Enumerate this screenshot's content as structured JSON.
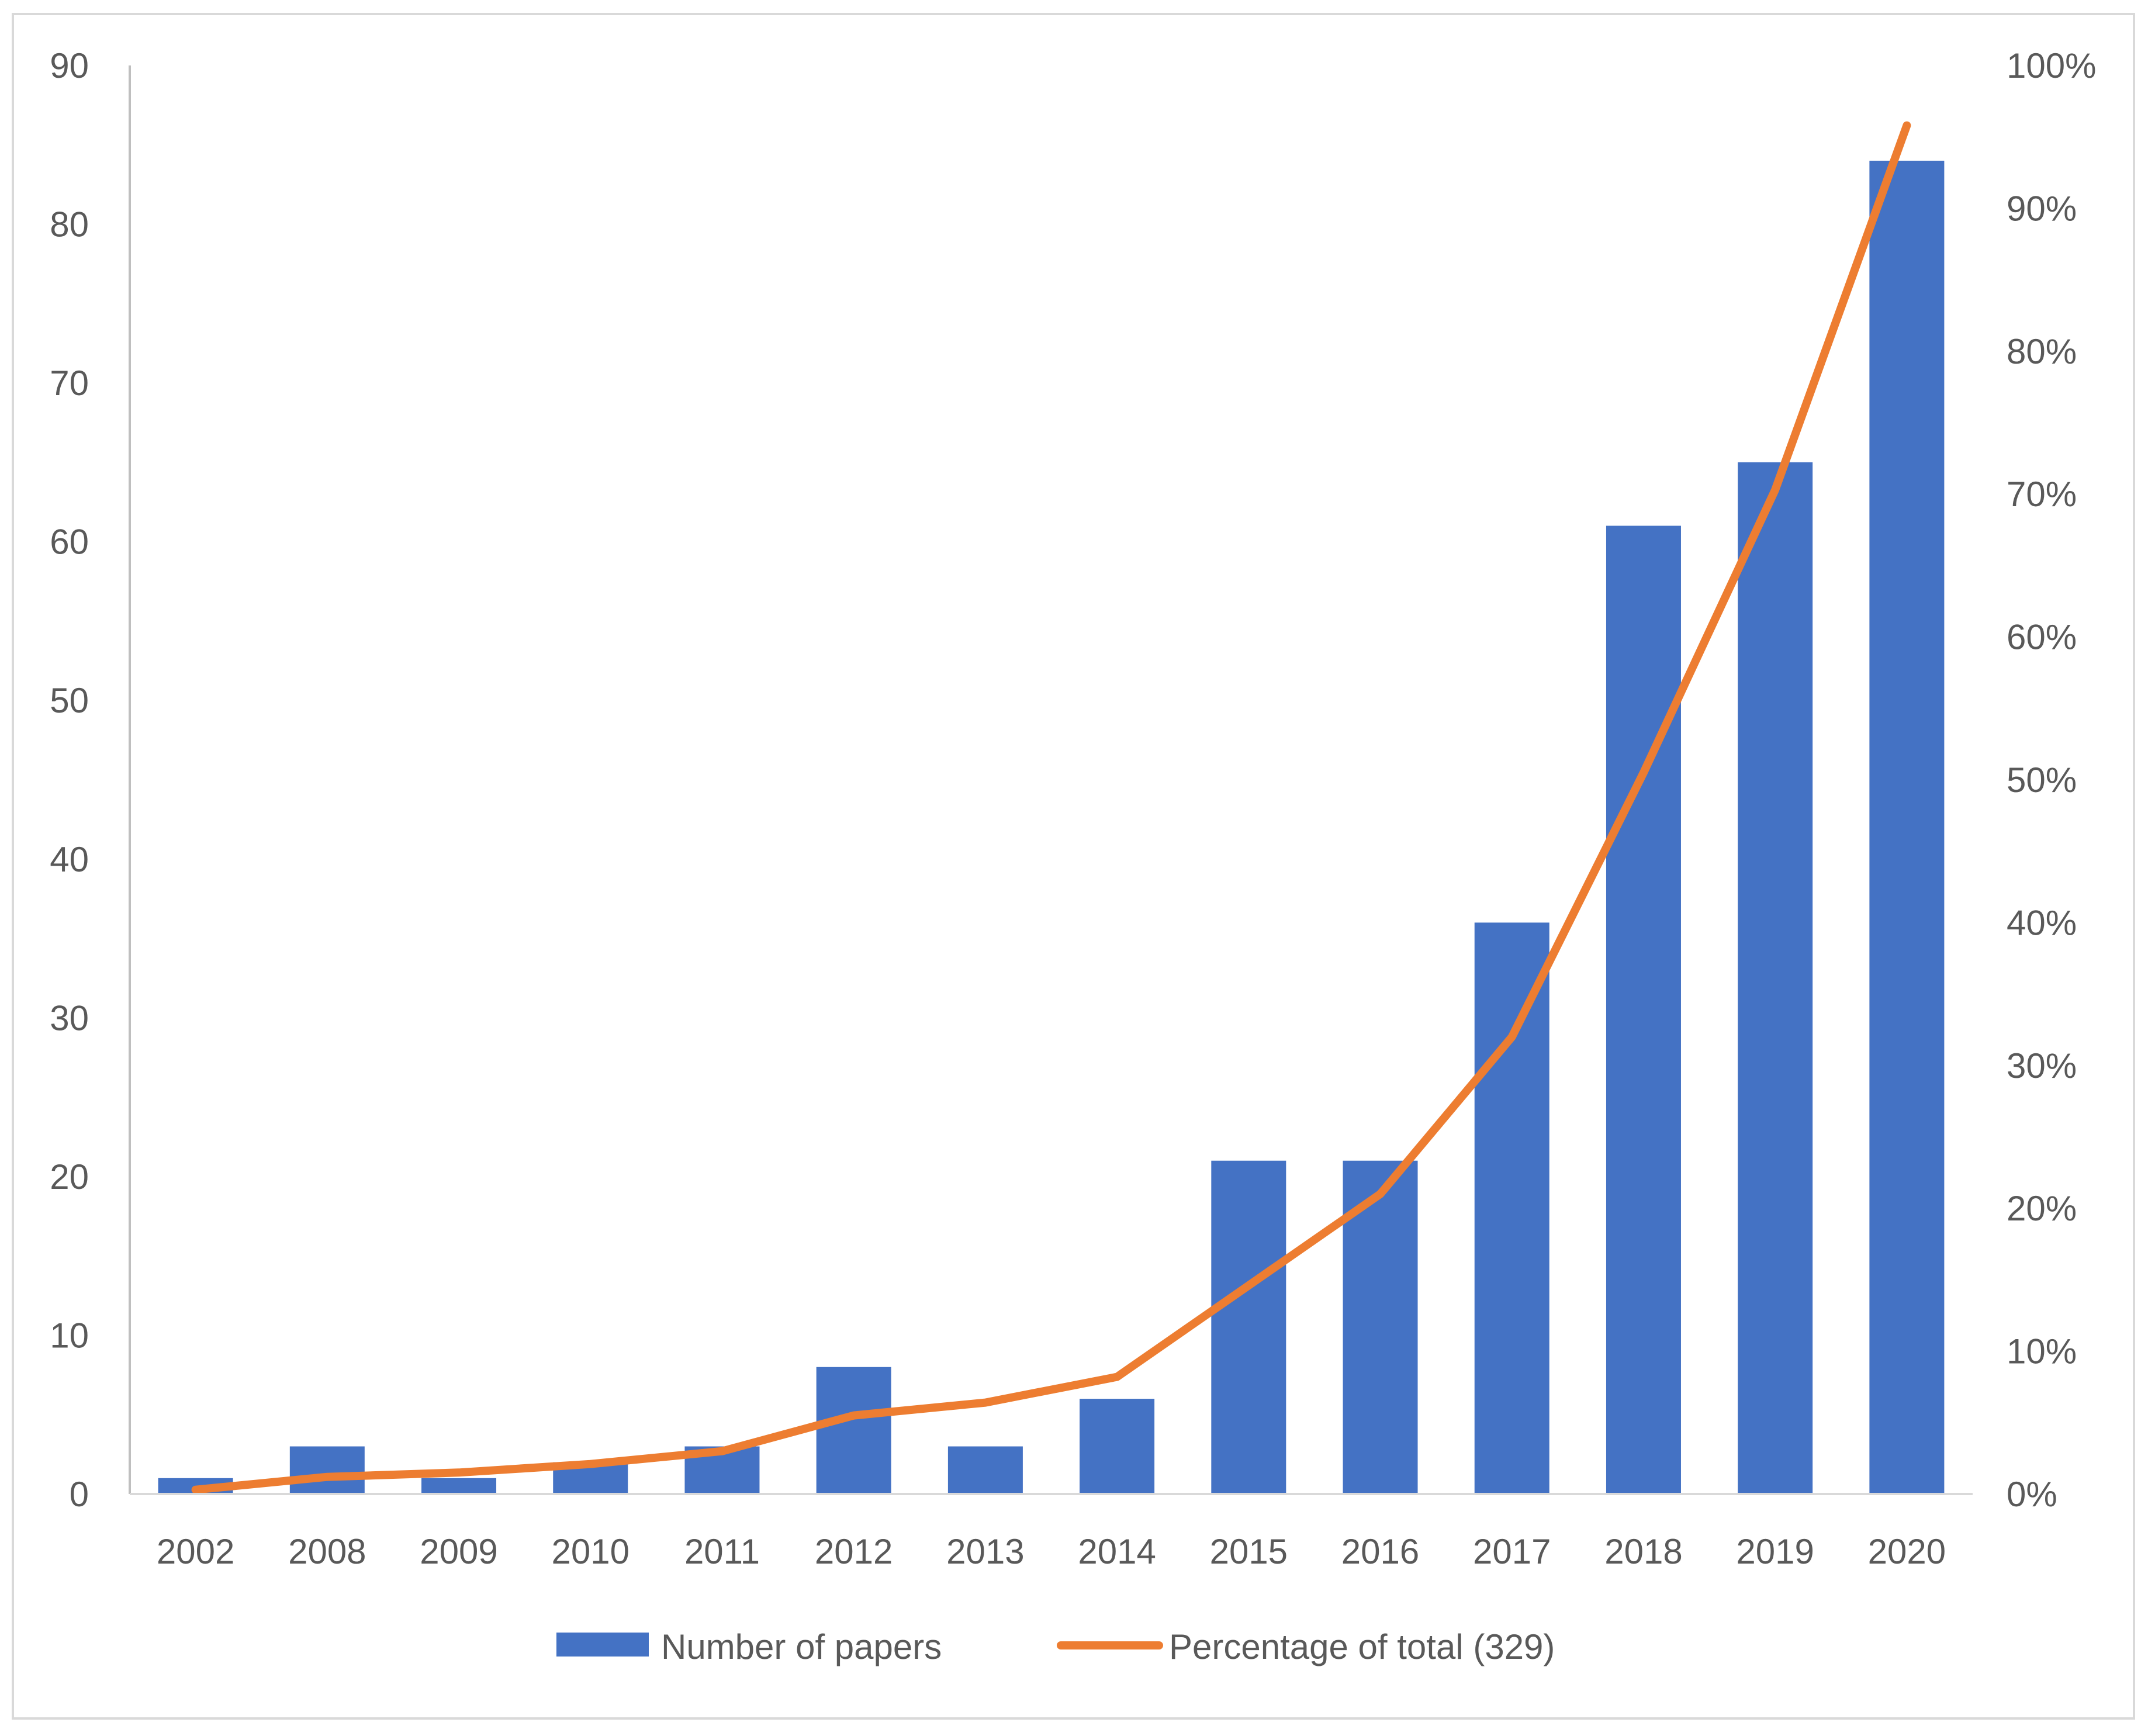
{
  "chart_data": {
    "type": "bar",
    "title": "",
    "xlabel": "",
    "ylabel": "",
    "categories": [
      "2002",
      "2008",
      "2009",
      "2010",
      "2011",
      "2012",
      "2013",
      "2014",
      "2015",
      "2016",
      "2017",
      "2018",
      "2019",
      "2020"
    ],
    "series": [
      {
        "name": "Number of papers",
        "type": "bar",
        "axis": "left",
        "color": "#4472C4",
        "values": [
          1,
          3,
          1,
          2,
          3,
          8,
          3,
          6,
          21,
          21,
          36,
          61,
          65,
          84
        ]
      },
      {
        "name": "Percentage of total (329)",
        "type": "line",
        "axis": "right",
        "color": "#ED7D31",
        "values": [
          0.3,
          1.2,
          1.5,
          2.1,
          3.0,
          5.5,
          6.4,
          8.2,
          14.6,
          21.0,
          32.0,
          50.5,
          70.3,
          95.8
        ]
      }
    ],
    "ylim": [
      0,
      90
    ],
    "yticks": [
      "0",
      "10",
      "20",
      "30",
      "40",
      "50",
      "60",
      "70",
      "80",
      "90"
    ],
    "y2lim": [
      0,
      100
    ],
    "y2ticks": [
      "0%",
      "10%",
      "20%",
      "30%",
      "40%",
      "50%",
      "60%",
      "70%",
      "80%",
      "90%",
      "100%"
    ],
    "grid": false,
    "legend_position": "bottom"
  }
}
